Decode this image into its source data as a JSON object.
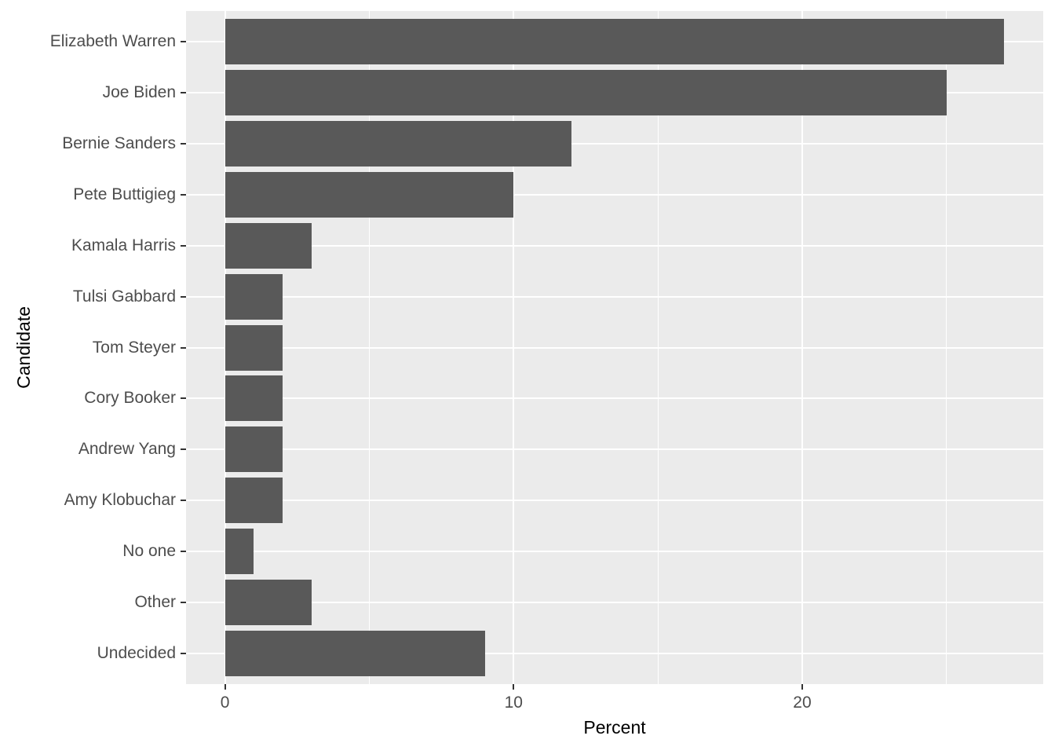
{
  "chart_data": {
    "type": "bar",
    "orientation": "horizontal",
    "title": "",
    "xlabel": "Percent",
    "ylabel": "Candidate",
    "categories": [
      "Elizabeth Warren",
      "Joe Biden",
      "Bernie Sanders",
      "Pete Buttigieg",
      "Kamala Harris",
      "Tulsi Gabbard",
      "Tom Steyer",
      "Cory Booker",
      "Andrew Yang",
      "Amy Klobuchar",
      "No one",
      "Other",
      "Undecided"
    ],
    "values": [
      27,
      25,
      12,
      10,
      3,
      2,
      2,
      2,
      2,
      2,
      1,
      3,
      9
    ],
    "x_ticks": [
      0,
      10,
      20
    ],
    "x_minor_ticks": [
      5,
      15,
      25
    ],
    "xlim": [
      -1.35,
      28.35
    ],
    "grid": true,
    "legend": false,
    "colors": {
      "bar": "#595959",
      "panel_background": "#EBEBEB",
      "gridline": "#FFFFFF",
      "axis_text": "#4D4D4D",
      "axis_title": "#000000",
      "tick_mark": "#333333",
      "figure_background": "#FFFFFF"
    }
  }
}
